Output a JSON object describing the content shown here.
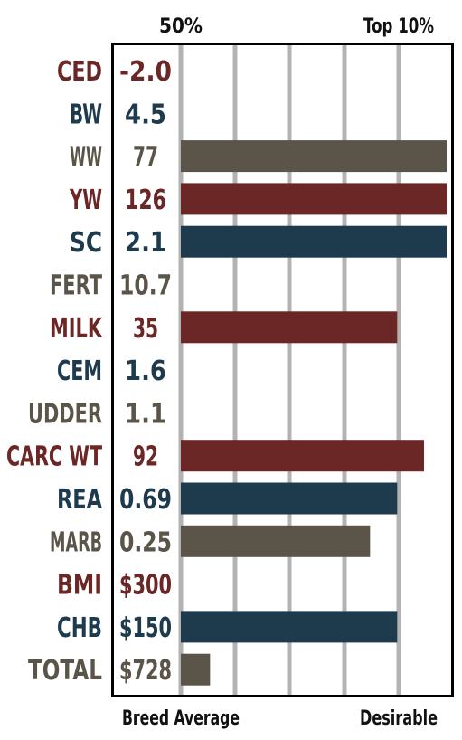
{
  "chart_data": {
    "type": "bar",
    "orientation": "horizontal",
    "top_labels": [
      "50%",
      "Top 10%"
    ],
    "bottom_labels": [
      "Breed Average",
      "Desirable"
    ],
    "grid": true,
    "colors": {
      "red": "#6b2626",
      "navy": "#1e3a4d",
      "olive": "#5a5548",
      "grid": "#b3b3b3",
      "frame": "#000000"
    },
    "value_range": [
      0,
      100
    ],
    "rows": [
      {
        "trait": "CED",
        "value": "-2.0",
        "percent": 0,
        "color": "red"
      },
      {
        "trait": "BW",
        "value": "4.5",
        "percent": 0,
        "color": "navy"
      },
      {
        "trait": "WW",
        "value": "77",
        "percent": 100,
        "color": "olive"
      },
      {
        "trait": "YW",
        "value": "126",
        "percent": 100,
        "color": "red"
      },
      {
        "trait": "SC",
        "value": "2.1",
        "percent": 100,
        "color": "navy"
      },
      {
        "trait": "FERT",
        "value": "10.7",
        "percent": 0,
        "color": "olive"
      },
      {
        "trait": "MILK",
        "value": "35",
        "percent": 81.4,
        "color": "red"
      },
      {
        "trait": "CEM",
        "value": "1.6",
        "percent": 0,
        "color": "navy"
      },
      {
        "trait": "UDDER",
        "value": "1.1",
        "percent": 0,
        "color": "olive"
      },
      {
        "trait": "CARC WT",
        "value": "92",
        "percent": 91.5,
        "color": "red"
      },
      {
        "trait": "REA",
        "value": "0.69",
        "percent": 81.4,
        "color": "navy"
      },
      {
        "trait": "MARB",
        "value": "0.25",
        "percent": 71.2,
        "color": "olive"
      },
      {
        "trait": "BMI",
        "value": "$300",
        "percent": 0,
        "color": "red"
      },
      {
        "trait": "CHB",
        "value": "$150",
        "percent": 81.4,
        "color": "navy"
      },
      {
        "trait": "TOTAL",
        "value": "$728",
        "percent": 11,
        "color": "olive"
      }
    ]
  }
}
